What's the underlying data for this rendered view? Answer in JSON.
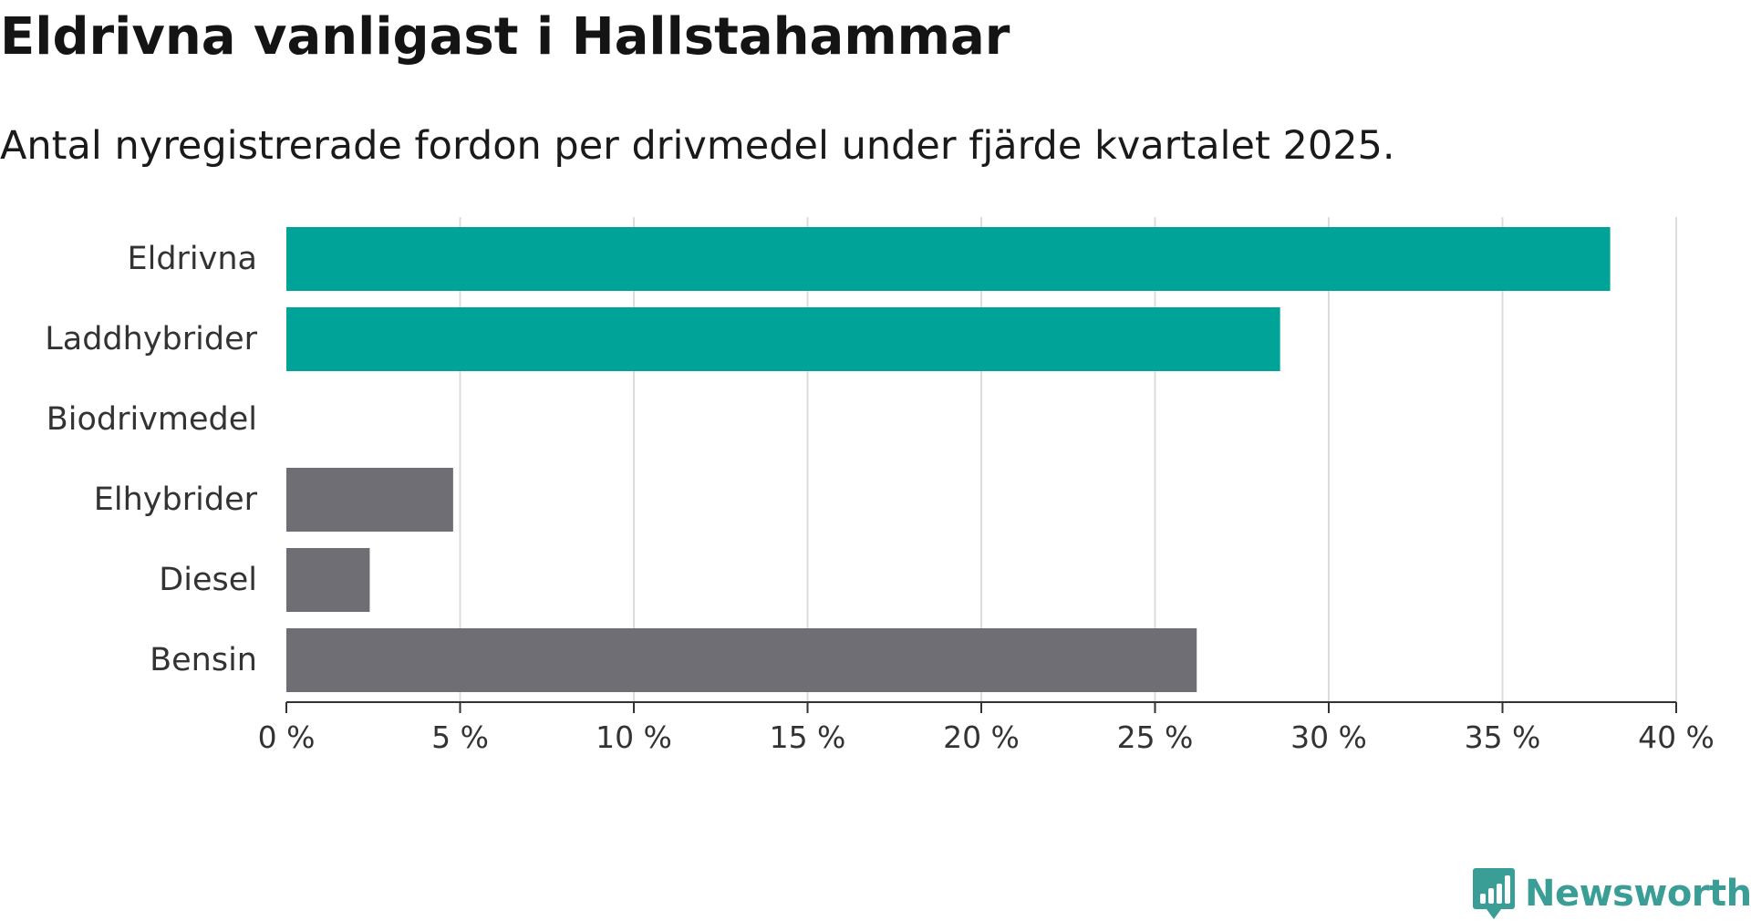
{
  "header": {
    "title": "Eldrivna vanligast i Hallstahammar",
    "subtitle": "Antal nyregistrerade fordon per drivmedel under fjärde kvartalet 2025."
  },
  "chart_data": {
    "type": "bar",
    "orientation": "horizontal",
    "title": "Eldrivna vanligast i Hallstahammar",
    "subtitle": "Antal nyregistrerade fordon per drivmedel under fjärde kvartalet 2025.",
    "categories": [
      "Eldrivna",
      "Laddhybrider",
      "Biodrivmedel",
      "Elhybrider",
      "Diesel",
      "Bensin"
    ],
    "values": [
      38.1,
      28.6,
      0,
      4.8,
      2.4,
      26.2
    ],
    "colors": [
      "#00a398",
      "#00a398",
      "#00a398",
      "#6e6e74",
      "#6e6e74",
      "#6e6e74"
    ],
    "xlim": [
      0,
      40
    ],
    "xticks": [
      0,
      5,
      10,
      15,
      20,
      25,
      30,
      35,
      40
    ],
    "tick_labels": [
      "0 %",
      "5 %",
      "10 %",
      "15 %",
      "20 %",
      "25 %",
      "30 %",
      "35 %",
      "40 %"
    ],
    "xlabel": "",
    "ylabel": "",
    "grid": true,
    "gridline_color": "#dcdcdc",
    "axis_color": "#333333"
  },
  "footer": {
    "brand": "Newsworthy",
    "brand_color": "#3a9e96",
    "logo_icon": "newsworthy-logo-icon"
  }
}
